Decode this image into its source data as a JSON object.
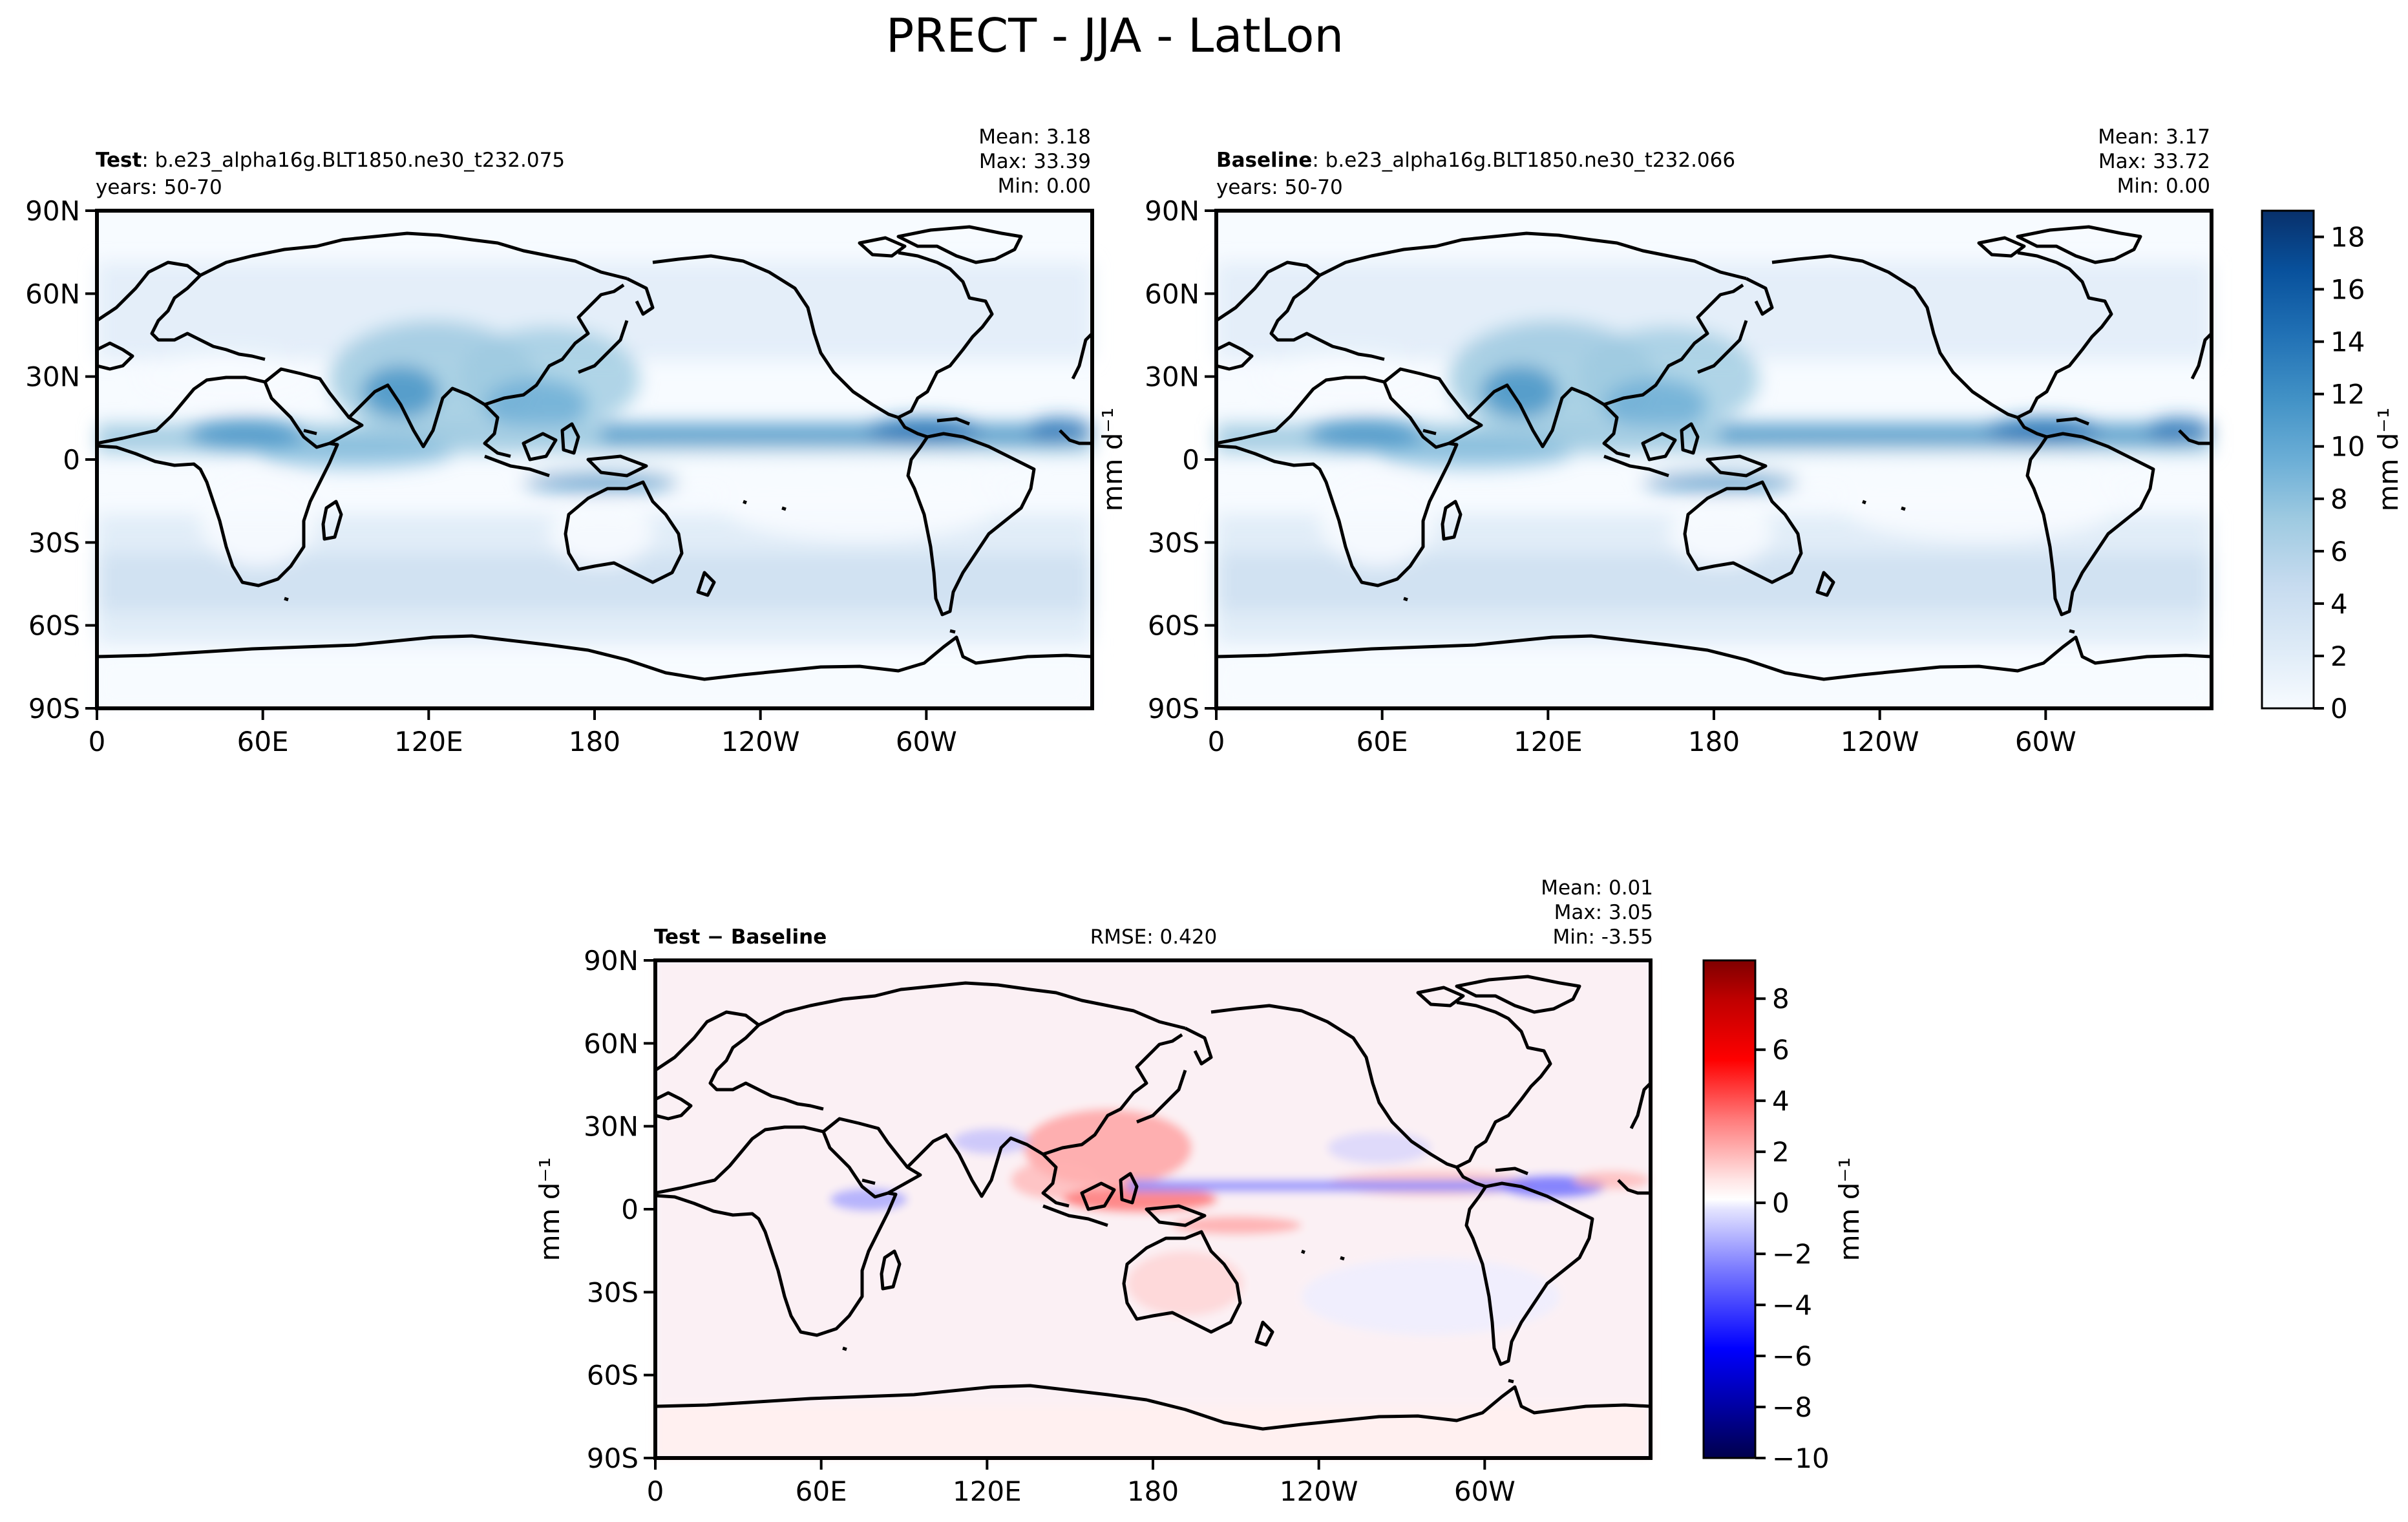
{
  "title": "PRECT - JJA - LatLon",
  "colors": {
    "blues": [
      "#f7fbff",
      "#deebf7",
      "#c6dbef",
      "#9ecae1",
      "#6baed6",
      "#4292c6",
      "#2171b5",
      "#08519c",
      "#08306b"
    ],
    "diff_neg": "#00007f",
    "diff_pos": "#7f0000",
    "diff_mid": "#ffffff"
  },
  "lat_ticks": [
    "90N",
    "60N",
    "30N",
    "0",
    "30S",
    "60S",
    "90S"
  ],
  "lon_ticks": [
    "0",
    "60E",
    "120E",
    "180",
    "120W",
    "60W"
  ],
  "panels": [
    {
      "name": "test",
      "label_bold": "Test",
      "label_text": ": b.e23_alpha16g.BLT1850.ne30_t232.075",
      "years": "years: 50-70",
      "stats": [
        "Mean:  3.18",
        "Max: 33.39",
        "Min:  0.00"
      ]
    },
    {
      "name": "baseline",
      "label_bold": "Baseline",
      "label_text": ": b.e23_alpha16g.BLT1850.ne30_t232.066",
      "years": "years: 50-70",
      "stats": [
        "Mean:  3.17",
        "Max: 33.72",
        "Min:  0.00"
      ]
    },
    {
      "name": "diff",
      "label_bold": "Test − Baseline",
      "rmse": "RMSE: 0.420",
      "stats": [
        "Mean:  0.01",
        "Max:  3.05",
        "Min: -3.55"
      ]
    }
  ],
  "ylabel": "mm d⁻¹",
  "colorbar_top": {
    "label": "mm d⁻¹",
    "ticks": [
      "0",
      "2",
      "4",
      "6",
      "8",
      "10",
      "12",
      "14",
      "16",
      "18"
    ],
    "range": [
      0,
      19
    ]
  },
  "colorbar_diff": {
    "label": "mm d⁻¹",
    "ticks": [
      "−10",
      "−8",
      "−6",
      "−4",
      "−2",
      "0",
      "2",
      "4",
      "6",
      "8"
    ],
    "range": [
      -10,
      9.5
    ]
  },
  "chart_data": {
    "type": "heatmap",
    "variable": "PRECT",
    "season": "JJA",
    "units": "mm d⁻¹",
    "lat_range": [
      -90,
      90
    ],
    "lon_range": [
      0,
      360
    ],
    "panels": [
      {
        "name": "Test",
        "mean": 3.18,
        "max": 33.39,
        "min": 0.0
      },
      {
        "name": "Baseline",
        "mean": 3.17,
        "max": 33.72,
        "min": 0.0
      },
      {
        "name": "Test − Baseline",
        "mean": 0.01,
        "max": 3.05,
        "min": -3.55,
        "rmse": 0.42
      }
    ],
    "colorbar_levels_top": [
      0,
      2,
      4,
      6,
      8,
      10,
      12,
      14,
      16,
      18
    ],
    "colorbar_levels_diff": [
      -10,
      -8,
      -6,
      -4,
      -2,
      0,
      2,
      4,
      6,
      8
    ]
  }
}
